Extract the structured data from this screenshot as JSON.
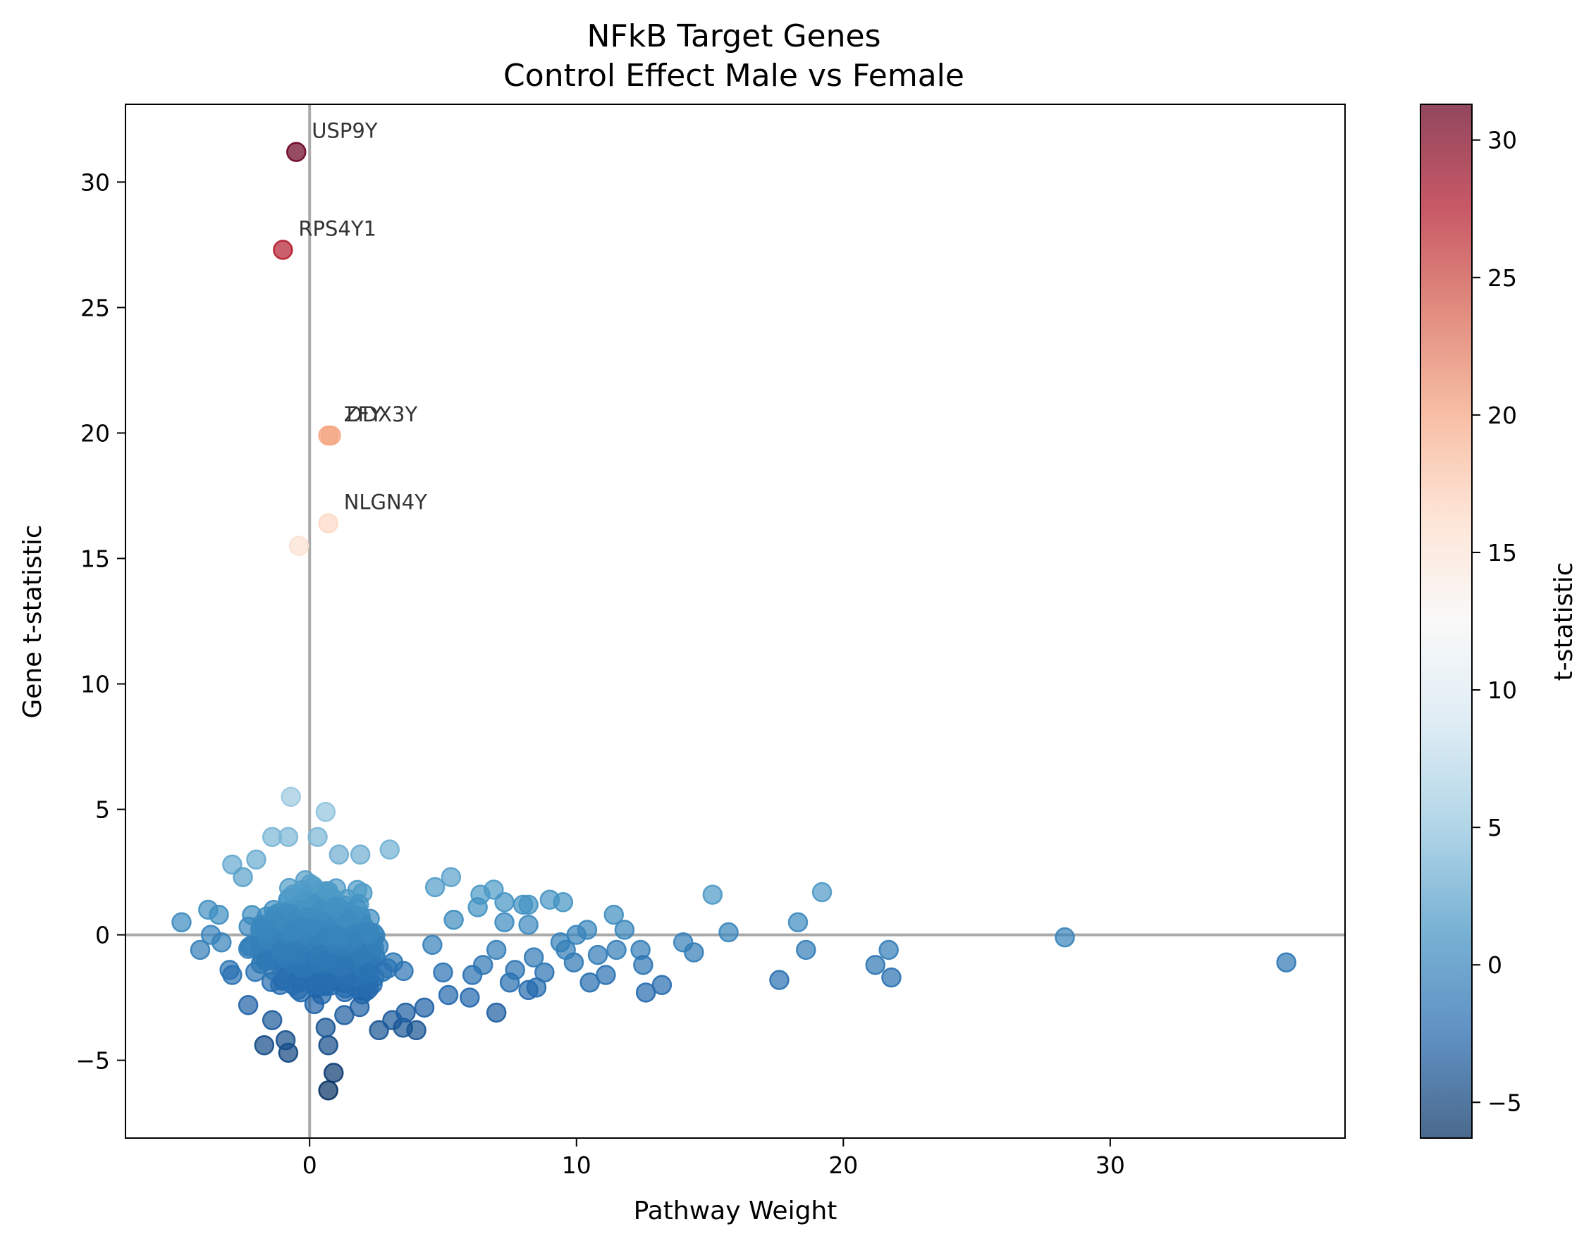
{
  "chart_data": {
    "type": "scatter",
    "title_line1": "NFkB Target Genes",
    "title_line2": "Control Effect Male vs Female",
    "xlabel": "Pathway Weight",
    "ylabel": "Gene t-statistic",
    "colorbar_label": "t-statistic",
    "xlim": [
      -6.9,
      38.8
    ],
    "ylim": [
      -8.1,
      33.1
    ],
    "xticks": [
      0,
      10,
      20,
      30
    ],
    "yticks": [
      -5,
      0,
      5,
      10,
      15,
      20,
      25,
      30
    ],
    "colorbar_range": [
      -6.3,
      31.3
    ],
    "colorbar_ticks": [
      -5,
      0,
      5,
      10,
      15,
      20,
      25,
      30
    ],
    "colormap": "RdBu_r",
    "reference_lines": {
      "x": 0,
      "y": 0,
      "color": "#aaaaaa"
    },
    "marker_alpha": 0.7,
    "labeled_points": [
      {
        "label": "USP9Y",
        "x": -0.5,
        "y": 31.2
      },
      {
        "label": "RPS4Y1",
        "x": -1.0,
        "y": 27.3
      },
      {
        "label": "ZFY",
        "x": 0.7,
        "y": 19.9
      },
      {
        "label": "DDX3Y",
        "x": 0.8,
        "y": 19.9
      },
      {
        "label": "NLGN4Y",
        "x": 0.7,
        "y": 16.4
      }
    ],
    "points": [
      {
        "x": -0.5,
        "y": 31.2
      },
      {
        "x": -1.0,
        "y": 27.3
      },
      {
        "x": 0.7,
        "y": 19.9
      },
      {
        "x": 0.8,
        "y": 19.9
      },
      {
        "x": 0.7,
        "y": 16.4
      },
      {
        "x": -0.4,
        "y": 15.5
      },
      {
        "x": -0.7,
        "y": 5.5
      },
      {
        "x": 0.6,
        "y": 4.9
      },
      {
        "x": -1.4,
        "y": 3.9
      },
      {
        "x": -0.8,
        "y": 3.9
      },
      {
        "x": 0.3,
        "y": 3.9
      },
      {
        "x": 3.0,
        "y": 3.4
      },
      {
        "x": -2.9,
        "y": 2.8
      },
      {
        "x": -2.0,
        "y": 3.0
      },
      {
        "x": 1.9,
        "y": 3.2
      },
      {
        "x": 1.1,
        "y": 3.2
      },
      {
        "x": -2.5,
        "y": 2.3
      },
      {
        "x": 5.3,
        "y": 2.3
      },
      {
        "x": 4.7,
        "y": 1.9
      },
      {
        "x": 6.9,
        "y": 1.8
      },
      {
        "x": 6.4,
        "y": 1.6
      },
      {
        "x": 7.3,
        "y": 1.3
      },
      {
        "x": 8.0,
        "y": 1.2
      },
      {
        "x": 8.2,
        "y": 1.2
      },
      {
        "x": 9.0,
        "y": 1.4
      },
      {
        "x": 9.5,
        "y": 1.3
      },
      {
        "x": 11.4,
        "y": 0.8
      },
      {
        "x": 15.1,
        "y": 1.6
      },
      {
        "x": 19.2,
        "y": 1.7
      },
      {
        "x": 18.3,
        "y": 0.5
      },
      {
        "x": 15.7,
        "y": 0.1
      },
      {
        "x": 11.8,
        "y": 0.2
      },
      {
        "x": 10.4,
        "y": 0.2
      },
      {
        "x": 10.0,
        "y": 0.0
      },
      {
        "x": 9.4,
        "y": -0.3
      },
      {
        "x": 8.2,
        "y": 0.4
      },
      {
        "x": 7.3,
        "y": 0.5
      },
      {
        "x": 5.4,
        "y": 0.6
      },
      {
        "x": -4.8,
        "y": 0.5
      },
      {
        "x": -3.8,
        "y": 1.0
      },
      {
        "x": -3.4,
        "y": 0.8
      },
      {
        "x": -3.7,
        "y": 0.0
      },
      {
        "x": -4.1,
        "y": -0.6
      },
      {
        "x": -3.3,
        "y": -0.3
      },
      {
        "x": -3.0,
        "y": -1.4
      },
      {
        "x": -2.9,
        "y": -1.6
      },
      {
        "x": -2.3,
        "y": -2.8
      },
      {
        "x": -1.4,
        "y": -3.4
      },
      {
        "x": -1.7,
        "y": -4.4
      },
      {
        "x": -0.8,
        "y": -4.7
      },
      {
        "x": -0.9,
        "y": -4.2
      },
      {
        "x": 0.7,
        "y": -4.4
      },
      {
        "x": 0.9,
        "y": -5.5
      },
      {
        "x": 0.7,
        "y": -6.2
      },
      {
        "x": 0.6,
        "y": -3.7
      },
      {
        "x": 1.3,
        "y": -3.2
      },
      {
        "x": 2.6,
        "y": -3.8
      },
      {
        "x": 3.1,
        "y": -3.4
      },
      {
        "x": 3.5,
        "y": -3.7
      },
      {
        "x": 4.0,
        "y": -3.8
      },
      {
        "x": 3.6,
        "y": -3.1
      },
      {
        "x": 4.3,
        "y": -2.9
      },
      {
        "x": 5.2,
        "y": -2.4
      },
      {
        "x": 6.0,
        "y": -2.5
      },
      {
        "x": 7.0,
        "y": -3.1
      },
      {
        "x": 8.2,
        "y": -2.2
      },
      {
        "x": 8.5,
        "y": -2.1
      },
      {
        "x": 7.5,
        "y": -1.9
      },
      {
        "x": 6.1,
        "y": -1.6
      },
      {
        "x": 8.8,
        "y": -1.5
      },
      {
        "x": 9.9,
        "y": -1.1
      },
      {
        "x": 10.5,
        "y": -1.9
      },
      {
        "x": 11.1,
        "y": -1.6
      },
      {
        "x": 10.8,
        "y": -0.8
      },
      {
        "x": 11.5,
        "y": -0.6
      },
      {
        "x": 12.4,
        "y": -0.6
      },
      {
        "x": 12.5,
        "y": -1.2
      },
      {
        "x": 12.6,
        "y": -2.3
      },
      {
        "x": 13.2,
        "y": -2.0
      },
      {
        "x": 14.0,
        "y": -0.3
      },
      {
        "x": 14.4,
        "y": -0.7
      },
      {
        "x": 17.6,
        "y": -1.8
      },
      {
        "x": 18.6,
        "y": -0.6
      },
      {
        "x": 21.2,
        "y": -1.2
      },
      {
        "x": 21.7,
        "y": -0.6
      },
      {
        "x": 21.8,
        "y": -1.7
      },
      {
        "x": 28.3,
        "y": -0.1
      },
      {
        "x": 36.6,
        "y": -1.1
      },
      {
        "x": 9.6,
        "y": -0.6
      },
      {
        "x": 8.4,
        "y": -0.9
      },
      {
        "x": 7.7,
        "y": -1.4
      },
      {
        "x": 6.5,
        "y": -1.2
      },
      {
        "x": 7.0,
        "y": -0.6
      },
      {
        "x": 6.3,
        "y": 1.1
      },
      {
        "x": 5.0,
        "y": -1.5
      },
      {
        "x": 4.6,
        "y": -0.4
      }
    ]
  }
}
